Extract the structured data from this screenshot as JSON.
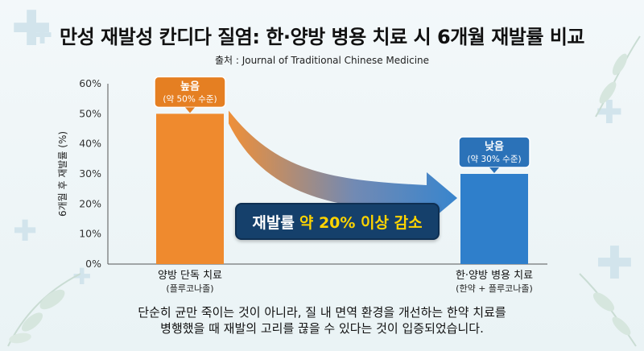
{
  "header": {
    "title": "만성 재발성 칸디다 질염: 한·양방 병용 치료 시 6개월 재발률 비교",
    "source": "출처 : Journal of Traditional Chinese Medicine"
  },
  "chart_data": {
    "type": "bar",
    "ylabel": "6개월 후 재발률 (%)",
    "ylim": [
      0,
      60
    ],
    "yticks": [
      "0%",
      "10%",
      "20%",
      "30%",
      "40%",
      "50%",
      "60%"
    ],
    "ytick_values": [
      0,
      10,
      20,
      30,
      40,
      50,
      60
    ],
    "categories": [
      "양방 단독 치료",
      "한·양방 병용 치료"
    ],
    "category_subtitles": [
      "(플루코나졸)",
      "(한약 + 플루코나졸)"
    ],
    "values": [
      50,
      30
    ],
    "bar_labels": [
      {
        "main": "높음",
        "sub": "(약 50% 수준)"
      },
      {
        "main": "낮음",
        "sub": "(약 30% 수준)"
      }
    ],
    "colors": [
      "#ef8a2e",
      "#2f7fcb"
    ],
    "grid": false
  },
  "annotation": {
    "prefix": "재발률",
    "highlight": "약 20% 이상 감소"
  },
  "caption": {
    "line1": "단순히 균만 죽이는 것이 아니라, 질 내 면역 환경을 개선하는 한약 치료를",
    "line2": "병행했을 때 재발의 고리를 끊을 수 있다는 것이 입증되었습니다."
  }
}
